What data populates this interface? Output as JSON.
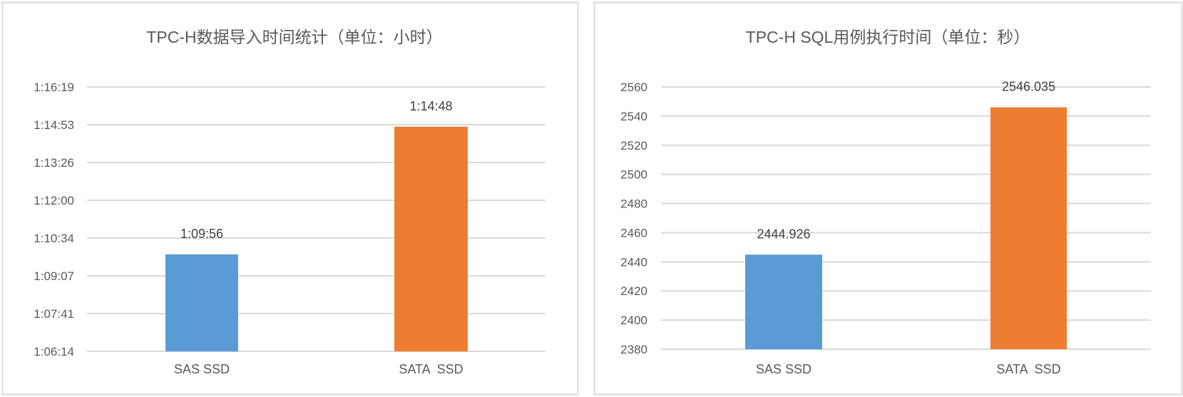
{
  "chart_data": [
    {
      "type": "bar",
      "title": "TPC-H数据导入时间统计（单位：小时）",
      "categories": [
        "SAS SSD",
        "SATA  SSD"
      ],
      "values": [
        "1:09:56",
        "1:14:48"
      ],
      "data_labels": [
        "1:09:56",
        "1:14:48"
      ],
      "ytick_labels": [
        "1:06:14",
        "1:07:41",
        "1:09:07",
        "1:10:34",
        "1:12:00",
        "1:13:26",
        "1:14:53",
        "1:16:19"
      ],
      "ylim": [
        "1:06:14",
        "1:16:19"
      ],
      "grid": true,
      "colors": [
        "#5B9BD5",
        "#ED7D31"
      ]
    },
    {
      "type": "bar",
      "title": "TPC-H SQL用例执行时间（单位：秒）",
      "categories": [
        "SAS SSD",
        "SATA  SSD"
      ],
      "values": [
        2444.926,
        2546.035
      ],
      "data_labels": [
        "2444.926",
        "2546.035"
      ],
      "ytick_labels": [
        "2380",
        "2400",
        "2420",
        "2440",
        "2460",
        "2480",
        "2500",
        "2520",
        "2540",
        "2560"
      ],
      "ylim": [
        2380,
        2560
      ],
      "grid": true,
      "colors": [
        "#5B9BD5",
        "#ED7D31"
      ]
    }
  ]
}
